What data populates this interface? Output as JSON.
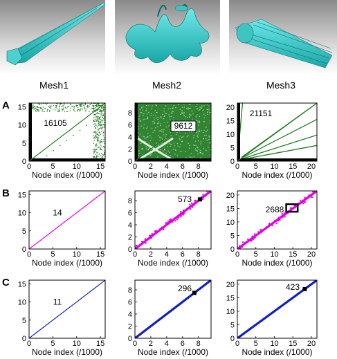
{
  "meshes": [
    {
      "label": "Mesh1"
    },
    {
      "label": "Mesh2"
    },
    {
      "label": "Mesh3"
    }
  ],
  "rows": [
    {
      "letter": "A",
      "color": "#1f7a1f",
      "show_xlabel": true
    },
    {
      "letter": "B",
      "color": "#e000e0",
      "show_xlabel": true
    },
    {
      "letter": "C",
      "color": "#1020c0",
      "show_xlabel": true
    }
  ],
  "xlabel": "Node index (/1000)",
  "axes": [
    {
      "xlim": [
        0,
        16
      ],
      "ylim": [
        0,
        16
      ],
      "xticks": [
        0,
        5,
        10,
        15
      ],
      "yticks": [
        0,
        5,
        10,
        15
      ]
    },
    {
      "xlim": [
        0,
        9.6
      ],
      "ylim": [
        0,
        9.6
      ],
      "xticks": [
        0,
        2,
        4,
        6,
        8
      ],
      "yticks": [
        0,
        2,
        4,
        6,
        8
      ]
    },
    {
      "xlim": [
        0,
        21.5
      ],
      "ylim": [
        0,
        21.5
      ],
      "xticks": [
        0,
        5,
        10,
        15,
        20
      ],
      "yticks": [
        0,
        5,
        10,
        15,
        20
      ]
    }
  ],
  "chart_data": [
    {
      "type": "scatter",
      "row": "A",
      "mesh": "Mesh1",
      "annotation": "16105",
      "xlim": [
        0,
        16
      ],
      "ylim": [
        0,
        16
      ]
    },
    {
      "type": "scatter",
      "row": "A",
      "mesh": "Mesh2",
      "annotation": "9612",
      "xlim": [
        0,
        9.6
      ],
      "ylim": [
        0,
        9.6
      ]
    },
    {
      "type": "scatter",
      "row": "A",
      "mesh": "Mesh3",
      "annotation": "21151",
      "xlim": [
        0,
        21.5
      ],
      "ylim": [
        0,
        21.5
      ]
    },
    {
      "type": "scatter",
      "row": "B",
      "mesh": "Mesh1",
      "annotation": "14",
      "xlim": [
        0,
        16
      ],
      "ylim": [
        0,
        16
      ]
    },
    {
      "type": "scatter",
      "row": "B",
      "mesh": "Mesh2",
      "annotation": "573",
      "xlim": [
        0,
        9.6
      ],
      "ylim": [
        0,
        9.6
      ]
    },
    {
      "type": "scatter",
      "row": "B",
      "mesh": "Mesh3",
      "annotation": "2688",
      "xlim": [
        0,
        21.5
      ],
      "ylim": [
        0,
        21.5
      ]
    },
    {
      "type": "scatter",
      "row": "C",
      "mesh": "Mesh1",
      "annotation": "11",
      "xlim": [
        0,
        16
      ],
      "ylim": [
        0,
        16
      ]
    },
    {
      "type": "scatter",
      "row": "C",
      "mesh": "Mesh2",
      "annotation": "296",
      "xlim": [
        0,
        9.6
      ],
      "ylim": [
        0,
        9.6
      ]
    },
    {
      "type": "scatter",
      "row": "C",
      "mesh": "Mesh3",
      "annotation": "423",
      "xlim": [
        0,
        21.5
      ],
      "ylim": [
        0,
        21.5
      ]
    }
  ]
}
